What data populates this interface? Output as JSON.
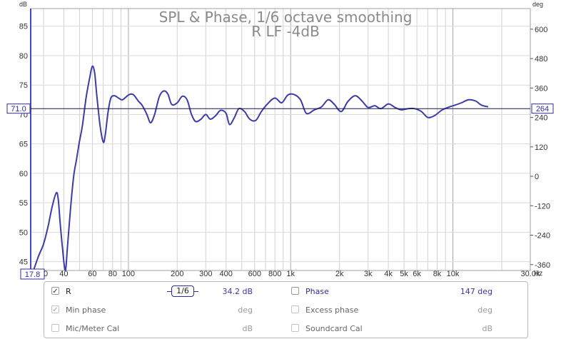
{
  "chart_data": {
    "type": "line",
    "title": "SPL & Phase, 1/6 octave smoothing",
    "subtitle": "R LF -4dB",
    "xlabel": "Hz",
    "ylabel": "dB",
    "y2label": "deg",
    "x_scale": "log",
    "xlim": [
      25,
      30000
    ],
    "ylim": [
      43.5,
      88
    ],
    "y2lim": [
      -384,
      684
    ],
    "grid": true,
    "x_ticks": [
      {
        "v": 30,
        "t": "30"
      },
      {
        "v": 40,
        "t": "40"
      },
      {
        "v": 60,
        "t": "60"
      },
      {
        "v": 80,
        "t": "80"
      },
      {
        "v": 100,
        "t": "100"
      },
      {
        "v": 200,
        "t": "200"
      },
      {
        "v": 300,
        "t": "300"
      },
      {
        "v": 400,
        "t": "400"
      },
      {
        "v": 600,
        "t": "600"
      },
      {
        "v": 800,
        "t": "800"
      },
      {
        "v": 1000,
        "t": "1k"
      },
      {
        "v": 2000,
        "t": "2k"
      },
      {
        "v": 3000,
        "t": "3k"
      },
      {
        "v": 4000,
        "t": "4k"
      },
      {
        "v": 5000,
        "t": "5k"
      },
      {
        "v": 6000,
        "t": "6k"
      },
      {
        "v": 8000,
        "t": "8k"
      },
      {
        "v": 10000,
        "t": "10k"
      },
      {
        "v": 30000,
        "t": "30.0k"
      }
    ],
    "y_ticks": [
      45,
      50,
      55,
      60,
      65,
      70,
      75,
      80,
      85
    ],
    "y2_ticks": [
      -360,
      -240,
      -120,
      0,
      120,
      240,
      360,
      480,
      600
    ],
    "cursor": {
      "y": 71.0,
      "y_label": "71.0",
      "y2_label": "264",
      "x_label": "17.8"
    },
    "series": [
      {
        "name": "R",
        "color": "#3c3ca8",
        "x": [
          26,
          28,
          30,
          32,
          34,
          36,
          37,
          38,
          40,
          41,
          42,
          44,
          46,
          48,
          50,
          52,
          55,
          58,
          60,
          62,
          64,
          67,
          70,
          72,
          75,
          78,
          82,
          87,
          92,
          100,
          107,
          115,
          122,
          130,
          137,
          145,
          155,
          165,
          175,
          185,
          200,
          215,
          230,
          245,
          260,
          280,
          300,
          320,
          345,
          370,
          400,
          420,
          450,
          480,
          520,
          560,
          610,
          660,
          720,
          800,
          880,
          960,
          1050,
          1150,
          1250,
          1400,
          1550,
          1700,
          1850,
          2050,
          2250,
          2500,
          2750,
          3000,
          3300,
          3600,
          4000,
          4400,
          4800,
          5300,
          5800,
          6400,
          7000,
          7700,
          8500,
          9300,
          10300,
          11300,
          12500,
          13800,
          15000,
          16500
        ],
        "y": [
          43.5,
          46,
          48,
          51,
          54.5,
          56.7,
          55.5,
          51.5,
          45,
          43.5,
          47,
          54,
          59.5,
          62.5,
          65.5,
          68,
          73,
          76.5,
          78.2,
          77,
          73,
          68,
          65.3,
          66.5,
          70.5,
          72.8,
          73.2,
          72.8,
          72.5,
          73.3,
          73.4,
          72.3,
          71.5,
          70,
          68.6,
          70,
          73,
          74,
          73.5,
          71.7,
          72,
          73.1,
          72.5,
          70,
          68.8,
          69.2,
          70,
          69.2,
          69.8,
          70.7,
          70.2,
          68.3,
          69.5,
          71,
          70.5,
          69.2,
          69,
          70.5,
          71.8,
          72.8,
          72,
          73.3,
          73.4,
          72.5,
          70.2,
          70.8,
          71.3,
          72.5,
          71.8,
          70.5,
          72.2,
          73.2,
          72.3,
          71.2,
          71.5,
          71,
          71.8,
          71.2,
          70.8,
          71,
          71,
          70.5,
          69.5,
          69.8,
          70.7,
          71.2,
          71.6,
          72,
          72.5,
          72.3,
          71.6,
          71.3
        ]
      }
    ]
  },
  "legend": {
    "rows": [
      {
        "left": {
          "label": "R",
          "checked": true,
          "value": "34.2 dB",
          "smoothing": "1/6"
        },
        "right": {
          "label": "Phase",
          "checked": false,
          "value": "147 deg"
        }
      },
      {
        "left": {
          "label": "Min phase",
          "checked": true,
          "value": "deg"
        },
        "right": {
          "label": "Excess phase",
          "checked": false,
          "value": "deg"
        }
      },
      {
        "left": {
          "label": "Mic/Meter Cal",
          "checked": false,
          "value": "dB"
        },
        "right": {
          "label": "Soundcard Cal",
          "checked": false,
          "value": "dB"
        }
      }
    ]
  }
}
